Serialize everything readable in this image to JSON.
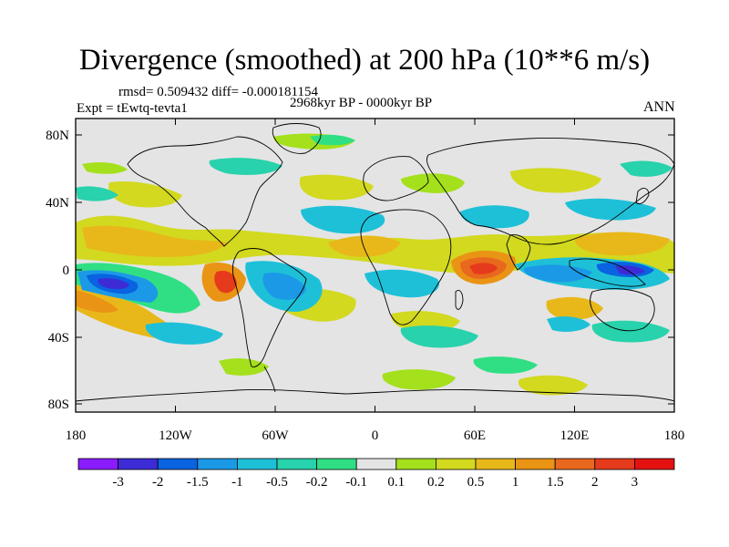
{
  "title": "Divergence (smoothed) at 200 hPa (10**6 m/s)",
  "stats_line": "rmsd= 0.509432 diff= -0.000181154",
  "experiment": "Expt = tEwtq-tevta1",
  "period": "2968kyr BP - 0000kyr BP",
  "season": "ANN",
  "map": {
    "x_ticks": [
      "180",
      "120W",
      "60W",
      "0",
      "60E",
      "120E",
      "180"
    ],
    "y_ticks": [
      "80N",
      "40N",
      "0",
      "40S",
      "80S"
    ]
  },
  "colorbar": {
    "labels": [
      "-3",
      "-2",
      "-1.5",
      "-1",
      "-0.5",
      "-0.2",
      "-0.1",
      "0.1",
      "0.2",
      "0.5",
      "1",
      "1.5",
      "2",
      "3"
    ],
    "colors": [
      "#8a1cff",
      "#3d2bd6",
      "#0a63e0",
      "#1b99e6",
      "#1ec0d8",
      "#27d2ac",
      "#30df84",
      "#e4e4e4",
      "#a4e01c",
      "#d2d91f",
      "#e8b81a",
      "#ea9415",
      "#e8681d",
      "#e63a1c",
      "#e51111"
    ]
  }
}
